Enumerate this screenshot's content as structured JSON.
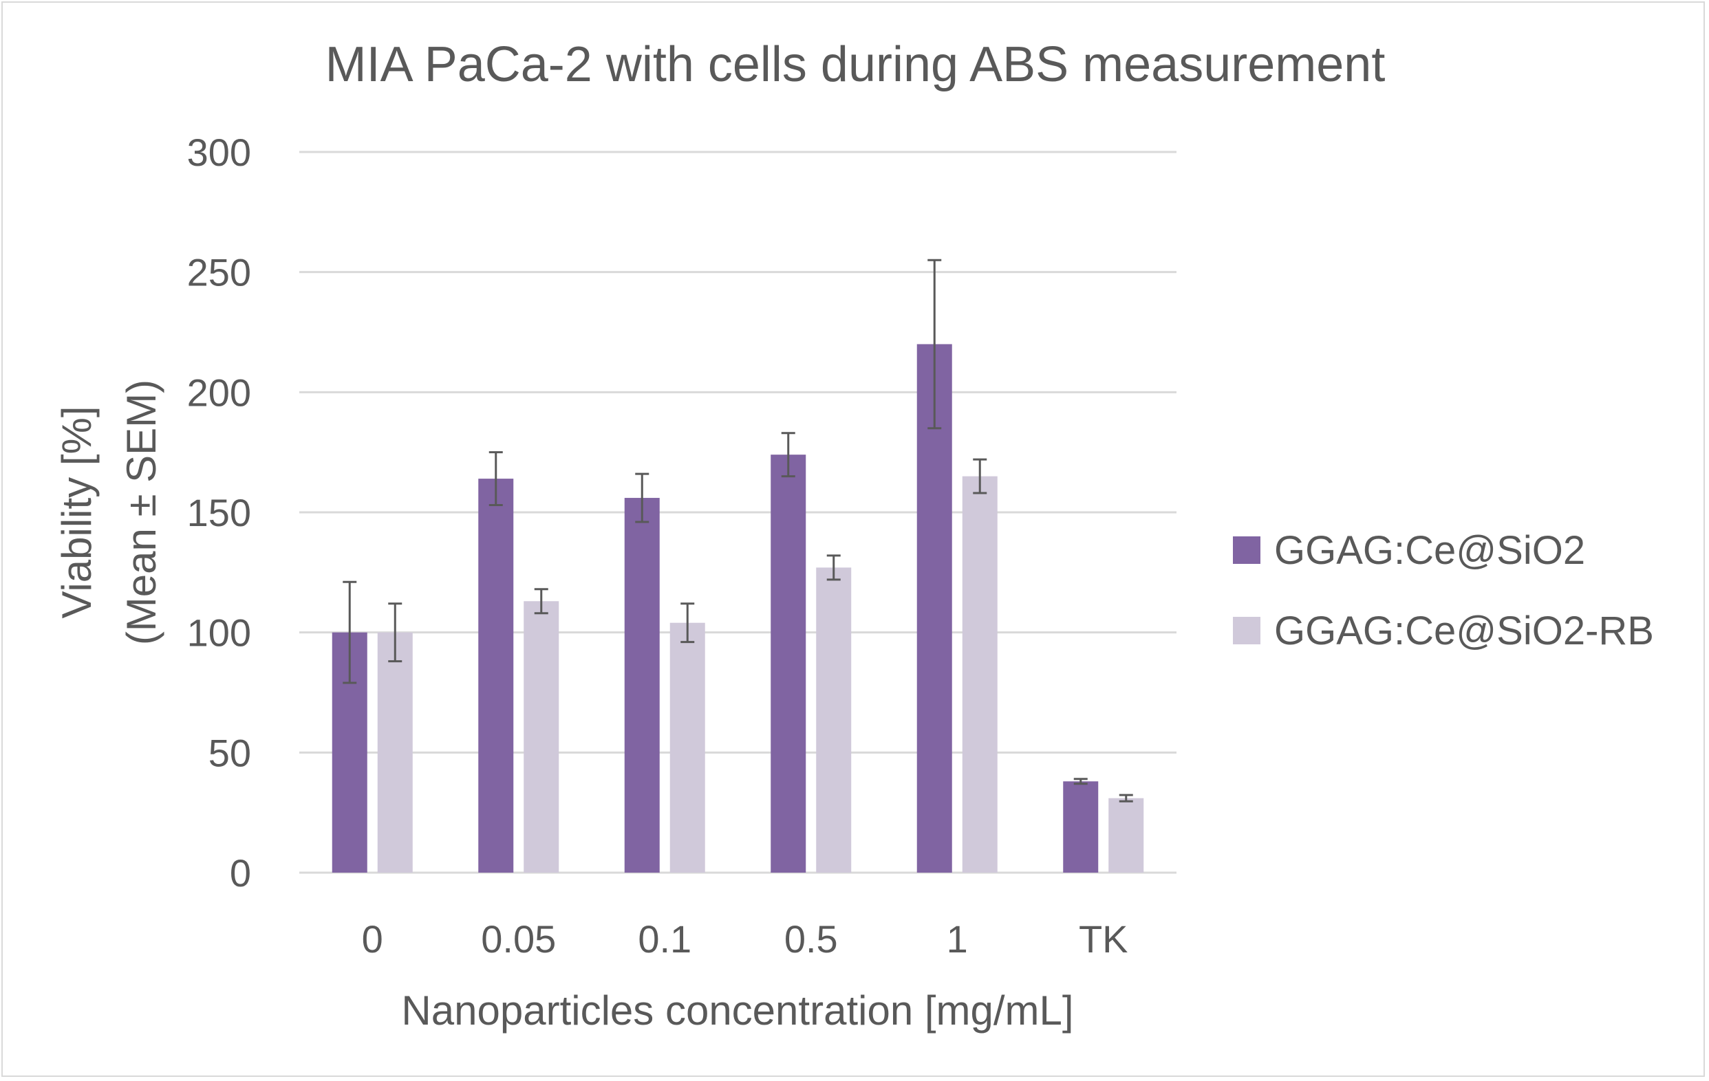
{
  "chart_data": {
    "type": "bar",
    "title": "MIA PaCa-2 with cells during ABS measurement",
    "xlabel": "Nanoparticles concentration [mg/mL]",
    "ylabel_line1": "Viability [%]",
    "ylabel_line2": "(Mean ± SEM)",
    "ylim": [
      0,
      300
    ],
    "yticks": [
      0,
      50,
      100,
      150,
      200,
      250,
      300
    ],
    "grid": true,
    "legend_position": "right",
    "categories": [
      "0",
      "0.05",
      "0.1",
      "0.5",
      "1",
      "TK"
    ],
    "series": [
      {
        "name": "GGAG:Ce@SiO2",
        "color": "#8064a2",
        "values": [
          100,
          164,
          156,
          174,
          220,
          38
        ],
        "errors": [
          21,
          11,
          10,
          9,
          35,
          1
        ]
      },
      {
        "name": "GGAG:Ce@SiO2-RB",
        "color": "#d0c9da",
        "values": [
          100,
          113,
          104,
          127,
          165,
          31
        ],
        "errors": [
          12,
          5,
          8,
          5,
          7,
          1.3
        ]
      }
    ]
  }
}
